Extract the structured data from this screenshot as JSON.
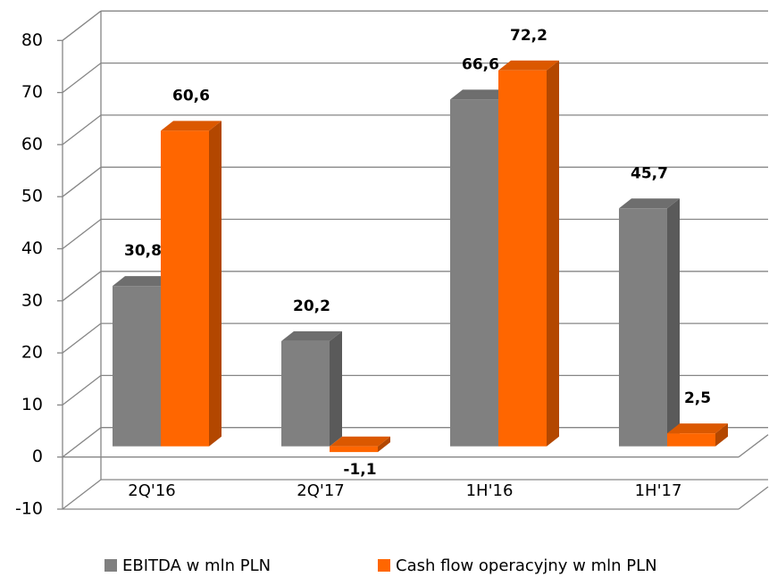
{
  "chart_data": {
    "type": "bar",
    "categories": [
      "2Q'16",
      "2Q'17",
      "1H'16",
      "1H'17"
    ],
    "series": [
      {
        "name": "EBITDA w mln PLN",
        "color": "#808080",
        "values": [
          30.8,
          20.2,
          66.6,
          45.7
        ],
        "value_labels": [
          "30,8",
          "20,2",
          "66,6",
          "45,7"
        ]
      },
      {
        "name": "Cash flow operacyjny w mln PLN",
        "color": "#ff6600",
        "values": [
          60.6,
          -1.1,
          72.2,
          2.5
        ],
        "value_labels": [
          "60,6",
          "-1,1",
          "72,2",
          "2,5"
        ]
      }
    ],
    "ylim": [
      -10,
      80
    ],
    "yticks": [
      -10,
      0,
      10,
      20,
      30,
      40,
      50,
      60,
      70,
      80
    ],
    "grid": true,
    "legend": "bottom"
  }
}
